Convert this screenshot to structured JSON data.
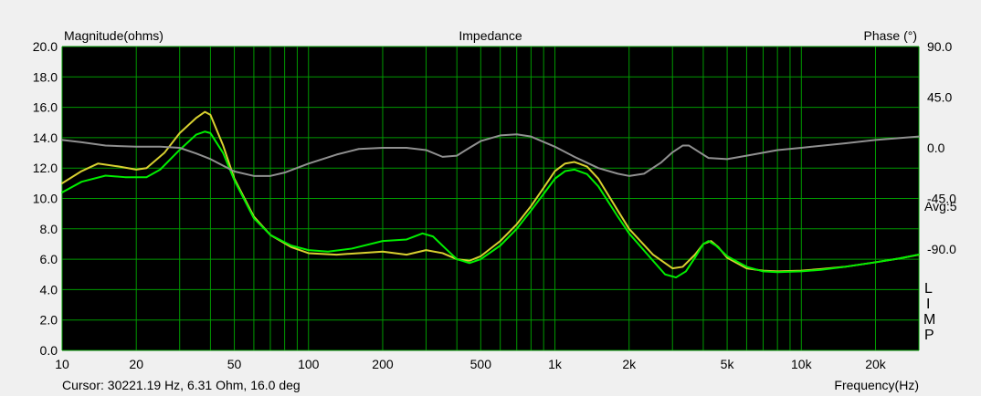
{
  "chart_data": {
    "type": "line",
    "title": "Impedance",
    "ylabel_left": "Magnitude(ohms)",
    "ylabel_right": "Phase (°)",
    "xlabel": "Frequency(Hz)",
    "x_scale": "log",
    "xlim": [
      10,
      30000
    ],
    "ylim_left": [
      0,
      20
    ],
    "ylim_right": [
      -180,
      90
    ],
    "grid": true,
    "x_ticks": [
      {
        "value": 10,
        "label": "10"
      },
      {
        "value": 20,
        "label": "20"
      },
      {
        "value": 50,
        "label": "50"
      },
      {
        "value": 100,
        "label": "100"
      },
      {
        "value": 200,
        "label": "200"
      },
      {
        "value": 500,
        "label": "500"
      },
      {
        "value": 1000,
        "label": "1k"
      },
      {
        "value": 2000,
        "label": "2k"
      },
      {
        "value": 5000,
        "label": "5k"
      },
      {
        "value": 10000,
        "label": "10k"
      },
      {
        "value": 20000,
        "label": "20k"
      }
    ],
    "y_ticks_left": [
      {
        "value": 20,
        "label": "20.0"
      },
      {
        "value": 18,
        "label": "18.0"
      },
      {
        "value": 16,
        "label": "16.0"
      },
      {
        "value": 14,
        "label": "14.0"
      },
      {
        "value": 12,
        "label": "12.0"
      },
      {
        "value": 10,
        "label": "10.0"
      },
      {
        "value": 8,
        "label": "8.0"
      },
      {
        "value": 6,
        "label": "6.0"
      },
      {
        "value": 4,
        "label": "4.0"
      },
      {
        "value": 2,
        "label": "2.0"
      },
      {
        "value": 0,
        "label": "0.0"
      }
    ],
    "y_ticks_right": [
      {
        "value": 90,
        "label": "90.0"
      },
      {
        "value": 45,
        "label": "45.0"
      },
      {
        "value": 0,
        "label": "0.0"
      },
      {
        "value": -45,
        "label": "-45.0"
      },
      {
        "value": -90,
        "label": "-90.0"
      }
    ],
    "series": [
      {
        "color": "#d8d030",
        "axis": "left",
        "points": [
          [
            10,
            11.0
          ],
          [
            12,
            11.8
          ],
          [
            14,
            12.3
          ],
          [
            17,
            12.1
          ],
          [
            20,
            11.9
          ],
          [
            22,
            12.0
          ],
          [
            26,
            13.0
          ],
          [
            30,
            14.3
          ],
          [
            35,
            15.3
          ],
          [
            38,
            15.7
          ],
          [
            40,
            15.5
          ],
          [
            45,
            13.5
          ],
          [
            50,
            11.3
          ],
          [
            60,
            8.8
          ],
          [
            70,
            7.6
          ],
          [
            85,
            6.8
          ],
          [
            100,
            6.4
          ],
          [
            130,
            6.3
          ],
          [
            160,
            6.4
          ],
          [
            200,
            6.5
          ],
          [
            250,
            6.3
          ],
          [
            300,
            6.6
          ],
          [
            350,
            6.4
          ],
          [
            400,
            6.0
          ],
          [
            450,
            5.9
          ],
          [
            500,
            6.2
          ],
          [
            600,
            7.2
          ],
          [
            700,
            8.3
          ],
          [
            800,
            9.5
          ],
          [
            900,
            10.7
          ],
          [
            1000,
            11.8
          ],
          [
            1100,
            12.3
          ],
          [
            1200,
            12.4
          ],
          [
            1350,
            12.1
          ],
          [
            1500,
            11.3
          ],
          [
            1800,
            9.2
          ],
          [
            2000,
            8.0
          ],
          [
            2500,
            6.3
          ],
          [
            3000,
            5.4
          ],
          [
            3300,
            5.5
          ],
          [
            3700,
            6.3
          ],
          [
            4000,
            7.0
          ],
          [
            4300,
            7.2
          ],
          [
            4600,
            6.8
          ],
          [
            5000,
            6.1
          ],
          [
            6000,
            5.4
          ],
          [
            7000,
            5.25
          ],
          [
            8000,
            5.2
          ],
          [
            10000,
            5.25
          ],
          [
            12000,
            5.35
          ],
          [
            15000,
            5.5
          ],
          [
            20000,
            5.8
          ],
          [
            25000,
            6.05
          ],
          [
            30000,
            6.3
          ]
        ]
      },
      {
        "color": "#00ee00",
        "axis": "left",
        "points": [
          [
            10,
            10.4
          ],
          [
            12,
            11.1
          ],
          [
            15,
            11.5
          ],
          [
            18,
            11.4
          ],
          [
            22,
            11.4
          ],
          [
            25,
            11.9
          ],
          [
            30,
            13.2
          ],
          [
            35,
            14.2
          ],
          [
            38,
            14.4
          ],
          [
            40,
            14.3
          ],
          [
            45,
            13.0
          ],
          [
            50,
            11.2
          ],
          [
            60,
            8.7
          ],
          [
            70,
            7.6
          ],
          [
            85,
            6.9
          ],
          [
            100,
            6.6
          ],
          [
            120,
            6.5
          ],
          [
            150,
            6.7
          ],
          [
            200,
            7.2
          ],
          [
            250,
            7.3
          ],
          [
            290,
            7.7
          ],
          [
            320,
            7.5
          ],
          [
            360,
            6.7
          ],
          [
            400,
            6.0
          ],
          [
            450,
            5.75
          ],
          [
            500,
            6.0
          ],
          [
            600,
            6.9
          ],
          [
            700,
            8.0
          ],
          [
            800,
            9.2
          ],
          [
            900,
            10.3
          ],
          [
            1000,
            11.3
          ],
          [
            1100,
            11.8
          ],
          [
            1200,
            11.9
          ],
          [
            1350,
            11.6
          ],
          [
            1500,
            10.8
          ],
          [
            1800,
            8.8
          ],
          [
            2000,
            7.7
          ],
          [
            2500,
            5.9
          ],
          [
            2800,
            5.0
          ],
          [
            3100,
            4.8
          ],
          [
            3400,
            5.2
          ],
          [
            3700,
            6.1
          ],
          [
            4000,
            7.0
          ],
          [
            4200,
            7.2
          ],
          [
            4500,
            6.9
          ],
          [
            5000,
            6.2
          ],
          [
            6000,
            5.5
          ],
          [
            7000,
            5.2
          ],
          [
            8000,
            5.15
          ],
          [
            10000,
            5.2
          ],
          [
            12000,
            5.3
          ],
          [
            15000,
            5.5
          ],
          [
            20000,
            5.8
          ],
          [
            25000,
            6.05
          ],
          [
            30000,
            6.31
          ]
        ]
      },
      {
        "color": "#909090",
        "axis": "right",
        "points": [
          [
            10,
            7
          ],
          [
            12,
            5
          ],
          [
            15,
            2
          ],
          [
            20,
            1
          ],
          [
            25,
            1
          ],
          [
            30,
            0
          ],
          [
            35,
            -5
          ],
          [
            40,
            -10
          ],
          [
            50,
            -21
          ],
          [
            60,
            -25
          ],
          [
            70,
            -25
          ],
          [
            80,
            -22
          ],
          [
            100,
            -14
          ],
          [
            130,
            -6
          ],
          [
            160,
            -1
          ],
          [
            200,
            0
          ],
          [
            250,
            0
          ],
          [
            300,
            -2
          ],
          [
            350,
            -8
          ],
          [
            400,
            -7
          ],
          [
            450,
            0
          ],
          [
            500,
            6
          ],
          [
            600,
            11
          ],
          [
            700,
            12
          ],
          [
            800,
            10
          ],
          [
            1000,
            1
          ],
          [
            1200,
            -8
          ],
          [
            1500,
            -18
          ],
          [
            1800,
            -23
          ],
          [
            2000,
            -25
          ],
          [
            2300,
            -23
          ],
          [
            2700,
            -13
          ],
          [
            3000,
            -4
          ],
          [
            3300,
            2
          ],
          [
            3500,
            2
          ],
          [
            3800,
            -3
          ],
          [
            4200,
            -9
          ],
          [
            5000,
            -10
          ],
          [
            6000,
            -7
          ],
          [
            8000,
            -2
          ],
          [
            10000,
            0
          ],
          [
            15000,
            4
          ],
          [
            20000,
            7
          ],
          [
            30000,
            10
          ]
        ]
      }
    ],
    "avg_label": "Avg:5",
    "lim_letters": [
      "L",
      "I",
      "M",
      "P"
    ],
    "cursor_readout": "Cursor: 30221.19 Hz, 6.31 Ohm, 16.0 deg",
    "colors": {
      "plot_background": "#000000",
      "grid": "#009900",
      "page_background": "#f0f0f0"
    }
  }
}
